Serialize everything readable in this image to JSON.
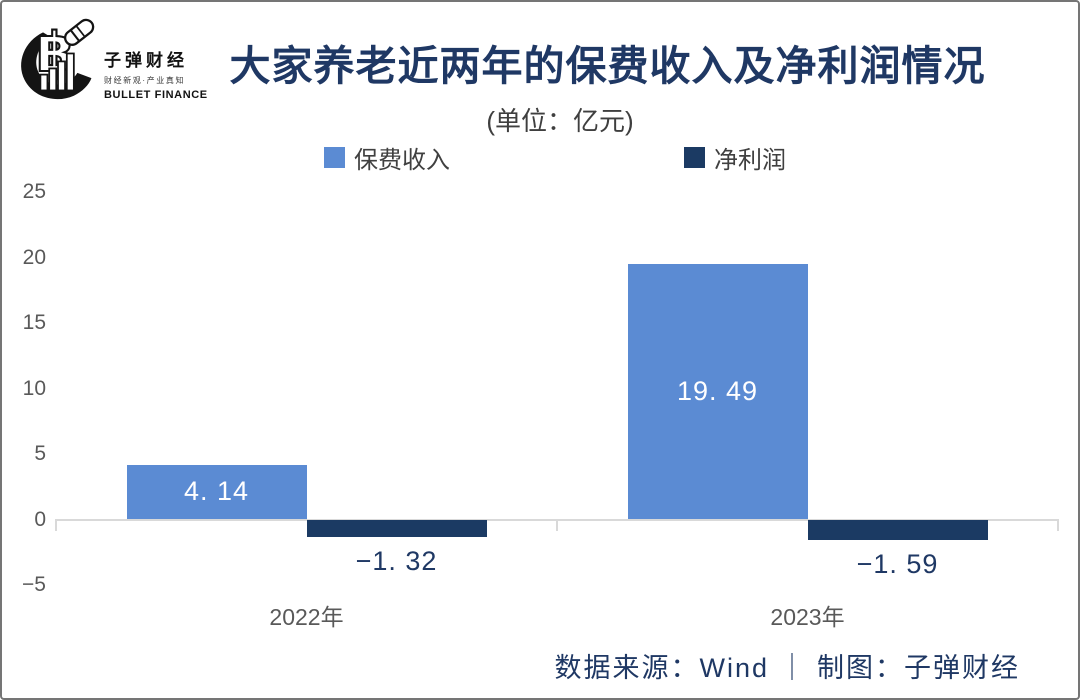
{
  "brand": {
    "logo_title": "子弹财经",
    "logo_tagline": "财经新观·产业真知",
    "logo_subtitle": "BULLET FINANCE"
  },
  "header": {
    "title": "大家养老近两年的保费收入及净利润情况",
    "subtitle": "(单位：亿元)"
  },
  "footer": {
    "source_text": "数据来源：Wind ｜ 制图：子弹财经"
  },
  "colors": {
    "premium_blue": "#5B8BD3",
    "profit_navy": "#1B3A63",
    "title_navy": "#1F3864",
    "axis_text_gray": "#595959",
    "axis_line_gray": "#D9D9D9",
    "frame_border_gray": "#757575"
  },
  "chart_data": {
    "type": "bar",
    "title": "大家养老近两年的保费收入及净利润情况",
    "unit_label": "(单位：亿元)",
    "categories": [
      "2022年",
      "2023年"
    ],
    "series": [
      {
        "key": "premium-income",
        "name": "保费收入",
        "values": [
          4.14,
          19.49
        ],
        "display_labels": [
          "4. 14",
          "19. 49"
        ],
        "color": "#5B8BD3",
        "label_color": "#FFFFFF"
      },
      {
        "key": "net-profit",
        "name": "净利润",
        "values": [
          -1.32,
          -1.59
        ],
        "display_labels": [
          "−1. 32",
          "−1. 59"
        ],
        "color": "#1B3A63",
        "label_color": "#1F3864"
      }
    ],
    "ylim": [
      -5,
      25
    ],
    "yticks": [
      25,
      20,
      15,
      10,
      5,
      0,
      -5
    ],
    "grid": false,
    "legend_position": "top",
    "source": "数据来源：Wind ｜ 制图：子弹财经"
  }
}
